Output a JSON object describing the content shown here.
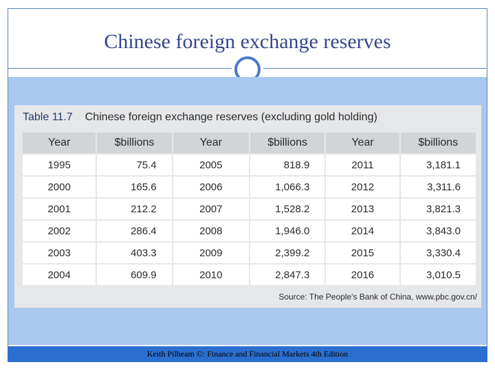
{
  "slide": {
    "title": "Chinese foreign exchange reserves",
    "footer": "Keith Pilbeam ©: Finance and Financial Markets 4th Edition"
  },
  "table": {
    "number": "Table 11.7",
    "caption": "Chinese foreign exchange reserves (excluding gold holding)",
    "headers": [
      "Year",
      "$billions",
      "Year",
      "$billions",
      "Year",
      "$billions"
    ],
    "rows": [
      [
        "1995",
        "75.4",
        "2005",
        "818.9",
        "2011",
        "3,181.1"
      ],
      [
        "2000",
        "165.6",
        "2006",
        "1,066.3",
        "2012",
        "3,311.6"
      ],
      [
        "2001",
        "212.2",
        "2007",
        "1,528.2",
        "2013",
        "3,821.3"
      ],
      [
        "2002",
        "286.4",
        "2008",
        "1,946.0",
        "2014",
        "3,843.0"
      ],
      [
        "2003",
        "403.3",
        "2009",
        "2,399.2",
        "2015",
        "3,330.4"
      ],
      [
        "2004",
        "609.9",
        "2010",
        "2,847.3",
        "2016",
        "3,010.5"
      ]
    ],
    "source": "Source: The People's Bank of China, www.pbc.gov.cn/"
  },
  "colors": {
    "title": "#33468a",
    "band": "#a9c8ef",
    "footer": "#2a6fcf",
    "circle": "#4b79c6"
  }
}
